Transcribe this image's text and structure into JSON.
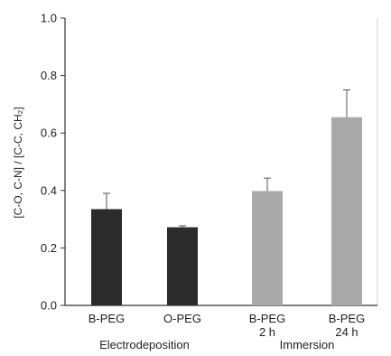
{
  "chart_data": {
    "type": "bar",
    "categories": [
      {
        "line1": "B-PEG",
        "line2": ""
      },
      {
        "line1": "O-PEG",
        "line2": ""
      },
      {
        "line1": "B-PEG",
        "line2": "2 h"
      },
      {
        "line1": "B-PEG",
        "line2": "24 h"
      }
    ],
    "values": [
      0.335,
      0.272,
      0.398,
      0.655
    ],
    "errors": [
      0.055,
      0.005,
      0.045,
      0.095
    ],
    "bar_colors": [
      "#2b2b2b",
      "#2b2b2b",
      "#a9a9a9",
      "#a9a9a9"
    ],
    "groups": [
      {
        "label": "Electrodeposition",
        "members": [
          0,
          1
        ]
      },
      {
        "label": "Immersion",
        "members": [
          2,
          3
        ]
      }
    ],
    "ylabel": "[C-O, C-N] / [C-C, CH₂]",
    "ylim": [
      0.0,
      1.0
    ],
    "yticks": [
      0.0,
      0.2,
      0.4,
      0.6,
      0.8,
      1.0
    ],
    "ytick_labels": [
      "0.0",
      "0.2",
      "0.4",
      "0.6",
      "0.8",
      "1.0"
    ],
    "grid": false,
    "colors": {
      "axis": "#333333",
      "frame": "#cfcfcf",
      "errorbar": "#555555"
    }
  }
}
